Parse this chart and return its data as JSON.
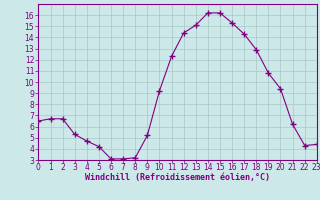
{
  "hours": [
    0,
    1,
    2,
    3,
    4,
    5,
    6,
    7,
    8,
    9,
    10,
    11,
    12,
    13,
    14,
    15,
    16,
    17,
    18,
    19,
    20,
    21,
    22,
    23
  ],
  "values": [
    6.5,
    6.7,
    6.7,
    5.3,
    4.7,
    4.2,
    3.1,
    3.1,
    3.2,
    5.2,
    9.2,
    12.3,
    14.4,
    15.1,
    16.2,
    16.2,
    15.3,
    14.3,
    12.9,
    10.8,
    9.4,
    6.2,
    4.3,
    4.4
  ],
  "line_color": "#800080",
  "marker": "+",
  "marker_size": 4,
  "background_color": "#cde8e8",
  "grid_color": "#aac8c8",
  "xlabel": "Windchill (Refroidissement éolien,°C)",
  "xlabel_color": "#800080",
  "tick_color": "#800080",
  "ylim": [
    3,
    17
  ],
  "yticks": [
    3,
    4,
    5,
    6,
    7,
    8,
    9,
    10,
    11,
    12,
    13,
    14,
    15,
    16
  ],
  "xlim": [
    0,
    23
  ],
  "xticks": [
    0,
    1,
    2,
    3,
    4,
    5,
    6,
    7,
    8,
    9,
    10,
    11,
    12,
    13,
    14,
    15,
    16,
    17,
    18,
    19,
    20,
    21,
    22,
    23
  ],
  "spine_color": "#800080",
  "tick_fontsize": 5.5,
  "xlabel_fontsize": 6.0
}
